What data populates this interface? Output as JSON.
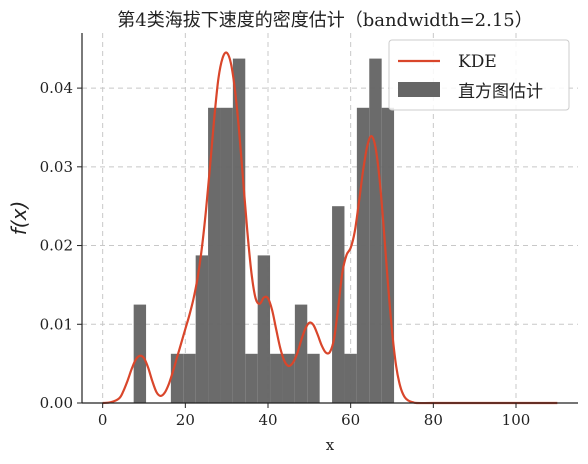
{
  "chart_data": {
    "type": "histogram+line",
    "title": "第4类海拔下速度的密度估计（bandwidth=2.15）",
    "xlabel": "x",
    "ylabel": "f(x)",
    "xlim": [
      -5,
      115
    ],
    "ylim": [
      0,
      0.047
    ],
    "xticks": [
      0,
      20,
      40,
      60,
      80,
      100
    ],
    "yticks": [
      0.0,
      0.01,
      0.02,
      0.03,
      0.04
    ],
    "ytick_labels": [
      "0.00",
      "0.01",
      "0.02",
      "0.03",
      "0.04"
    ],
    "grid": true,
    "legend_position": "top-right",
    "histogram": {
      "name": "直方图估计",
      "color": "#666666",
      "bin_width": 3,
      "bins": [
        {
          "x0": 7.5,
          "value": 0.0125
        },
        {
          "x0": 16.5,
          "value": 0.00625
        },
        {
          "x0": 19.5,
          "value": 0.00625
        },
        {
          "x0": 22.5,
          "value": 0.01875
        },
        {
          "x0": 25.5,
          "value": 0.0375
        },
        {
          "x0": 28.5,
          "value": 0.0375
        },
        {
          "x0": 31.5,
          "value": 0.04375
        },
        {
          "x0": 34.5,
          "value": 0.00625
        },
        {
          "x0": 37.5,
          "value": 0.01875
        },
        {
          "x0": 40.5,
          "value": 0.00625
        },
        {
          "x0": 43.5,
          "value": 0.00625
        },
        {
          "x0": 46.5,
          "value": 0.0125
        },
        {
          "x0": 49.5,
          "value": 0.00625
        },
        {
          "x0": 55.5,
          "value": 0.025
        },
        {
          "x0": 58.5,
          "value": 0.00625
        },
        {
          "x0": 61.5,
          "value": 0.0375
        },
        {
          "x0": 64.5,
          "value": 0.04375
        },
        {
          "x0": 67.5,
          "value": 0.0375
        }
      ]
    },
    "kde": {
      "name": "KDE",
      "color": "#d9462b",
      "x": [
        0,
        2,
        4,
        5,
        6,
        7,
        8,
        9,
        10,
        11,
        12,
        13,
        14,
        15,
        16,
        17,
        18,
        19,
        20,
        21,
        22,
        23,
        24,
        25,
        26,
        27,
        28,
        29,
        30,
        31,
        32,
        33,
        34,
        35,
        36,
        37,
        38,
        39,
        40,
        41,
        42,
        43,
        44,
        45,
        46,
        47,
        48,
        49,
        50,
        51,
        52,
        53,
        54,
        55,
        56,
        57,
        58,
        59,
        60,
        61,
        62,
        63,
        64,
        65,
        66,
        67,
        68,
        69,
        70,
        71,
        72,
        73,
        74,
        75,
        76,
        80,
        90,
        100,
        110
      ],
      "y": [
        0.0,
        0.0001,
        0.0006,
        0.0015,
        0.0028,
        0.0043,
        0.0055,
        0.006,
        0.0057,
        0.0045,
        0.0028,
        0.0014,
        0.0009,
        0.0013,
        0.0024,
        0.004,
        0.0058,
        0.0076,
        0.0094,
        0.0112,
        0.0133,
        0.016,
        0.0197,
        0.0245,
        0.0302,
        0.0362,
        0.0412,
        0.0438,
        0.0445,
        0.0432,
        0.0398,
        0.0346,
        0.0282,
        0.0218,
        0.0165,
        0.0133,
        0.0126,
        0.0134,
        0.0133,
        0.0118,
        0.0093,
        0.0069,
        0.0053,
        0.0047,
        0.0051,
        0.0062,
        0.0079,
        0.0094,
        0.0102,
        0.0099,
        0.0087,
        0.0073,
        0.0064,
        0.0065,
        0.0082,
        0.0122,
        0.0166,
        0.0188,
        0.0197,
        0.0218,
        0.0255,
        0.0295,
        0.0326,
        0.0339,
        0.0325,
        0.0284,
        0.0222,
        0.0153,
        0.0092,
        0.0047,
        0.0021,
        0.0008,
        0.0003,
        0.0001,
        0.0,
        0.0,
        0.0,
        0.0,
        0.0
      ]
    }
  }
}
